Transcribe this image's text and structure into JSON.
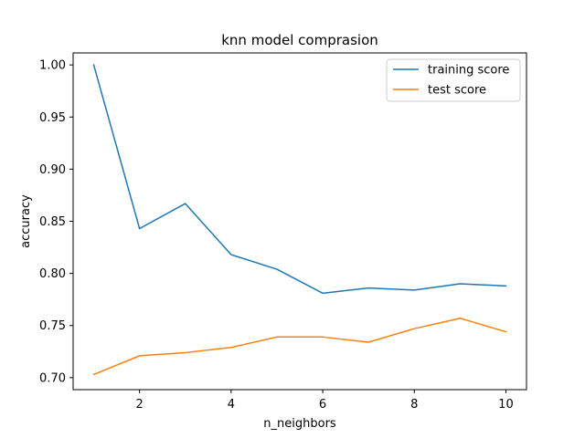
{
  "chart_data": {
    "type": "line",
    "title": "knn model comprasion",
    "xlabel": "n_neighbors",
    "ylabel": "accuracy",
    "xlim": [
      0.55,
      10.45
    ],
    "ylim": [
      0.6885,
      1.0115
    ],
    "xticks": [
      2,
      4,
      6,
      8,
      10
    ],
    "yticks": [
      0.7,
      0.75,
      0.8,
      0.85,
      0.9,
      0.95,
      1.0
    ],
    "ytick_labels": [
      "0.70",
      "0.75",
      "0.80",
      "0.85",
      "0.90",
      "0.95",
      "1.00"
    ],
    "grid": false,
    "legend_position": "top-right",
    "x": [
      1,
      2,
      3,
      4,
      5,
      6,
      7,
      8,
      9,
      10
    ],
    "series": [
      {
        "name": "training score",
        "color": "#1f77b4",
        "values": [
          1.0,
          0.843,
          0.867,
          0.818,
          0.804,
          0.781,
          0.786,
          0.784,
          0.79,
          0.788
        ]
      },
      {
        "name": "test score",
        "color": "#ff7f0e",
        "values": [
          0.703,
          0.721,
          0.724,
          0.729,
          0.739,
          0.739,
          0.734,
          0.747,
          0.757,
          0.744
        ]
      }
    ]
  }
}
